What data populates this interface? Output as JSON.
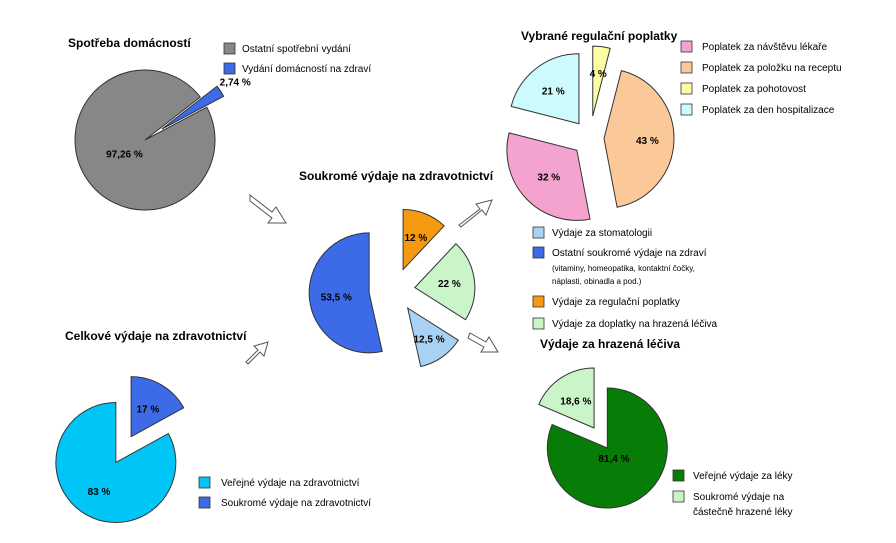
{
  "chart_data": [
    {
      "id": "spotreba",
      "type": "pie",
      "title": "Spotřeba domácností",
      "slices": [
        {
          "label": "Ostatní spotřební výdání",
          "value": 97.26,
          "value_label": "97,26 %",
          "color": "#878787"
        },
        {
          "label": "Vydání domácností na zdraví",
          "value": 2.74,
          "value_label": "2,74 %",
          "color": "#3d6be8"
        }
      ]
    },
    {
      "id": "celkove",
      "type": "pie",
      "title": "Celkové výdaje na zdravotnictví",
      "slices": [
        {
          "label": "Veřejné výdaje na zdravotnictví",
          "value": 83,
          "value_label": "83 %",
          "color": "#00c5f7"
        },
        {
          "label": "Soukromé výdaje na zdravotnictví",
          "value": 17,
          "value_label": "17 %",
          "color": "#3d6be8"
        }
      ]
    },
    {
      "id": "soukrome",
      "type": "pie",
      "title": "Soukromé výdaje na zdravotnictví",
      "slices": [
        {
          "label": "Výdaje za regulační poplatky",
          "value": 12,
          "value_label": "12 %",
          "color": "#f59a10"
        },
        {
          "label": "Výdaje za doplatky na hrazená léčiva",
          "value": 22,
          "value_label": "22 %",
          "color": "#c9f5c9"
        },
        {
          "label": "Výdaje za stomatologii",
          "value": 12.5,
          "value_label": "12,5 %",
          "color": "#a9d1f3"
        },
        {
          "label": "Ostatní soukromé výdaje na zdraví",
          "note": "(vitaminy, homeopatika, kontaktní čočky, náplasti, obinadla a pod.)",
          "value": 53.5,
          "value_label": "53,5 %",
          "color": "#3d6be8"
        }
      ]
    },
    {
      "id": "poplatky",
      "type": "pie",
      "title": "Vybrané regulační poplatky",
      "slices": [
        {
          "label": "Poplatek za pohotovost",
          "value": 4,
          "value_label": "4 %",
          "color": "#fdfda2"
        },
        {
          "label": "Poplatek za položku na receptu",
          "value": 43,
          "value_label": "43 %",
          "color": "#fbc89a"
        },
        {
          "label": "Poplatek za návštěvu lékaře",
          "value": 32,
          "value_label": "32 %",
          "color": "#f4a3cf"
        },
        {
          "label": "Poplatek za den hospitalizace",
          "value": 21,
          "value_label": "21 %",
          "color": "#cdfafc"
        }
      ]
    },
    {
      "id": "leciva",
      "type": "pie",
      "title": "Výdaje za hrazená léčiva",
      "slices": [
        {
          "label": "Veřejné výdaje za léky",
          "value": 81.4,
          "value_label": "81,4 %",
          "color": "#077d07"
        },
        {
          "label": "Soukromé výdaje na částečně hrazené léky",
          "value": 18.6,
          "value_label": "18,6 %",
          "color": "#c9f5c9"
        }
      ]
    }
  ],
  "legends": {
    "spotreba": [
      "Ostatní spotřební vydání",
      "Vydání domácností na zdraví"
    ],
    "celkove": [
      "Veřejné výdaje na zdravotnictví",
      "Soukromé výdaje na zdravotnictví"
    ],
    "poplatky": [
      "Poplatek za návštěvu lékaře",
      "Poplatek za položku na receptu",
      "Poplatek za pohotovost",
      "Poplatek za den hospitalizace"
    ],
    "soukrome": {
      "stomatologie": "Výdaje za stomatologii",
      "ostatni": "Ostatní soukromé výdaje na zdraví",
      "ostatni_note_1": "(vitaminy, homeopatika, kontaktní čočky,",
      "ostatni_note_2": "náplasti, obinadla a pod.)",
      "regulacni": "Výdaje za regulační poplatky",
      "doplatky": "Výdaje za doplatky na hrazená léčiva"
    },
    "leciva": {
      "verejne": "Veřejné výdaje za léky",
      "soukrome_1": "Soukromé výdaje na",
      "soukrome_2": "částečně hrazené léky"
    }
  }
}
